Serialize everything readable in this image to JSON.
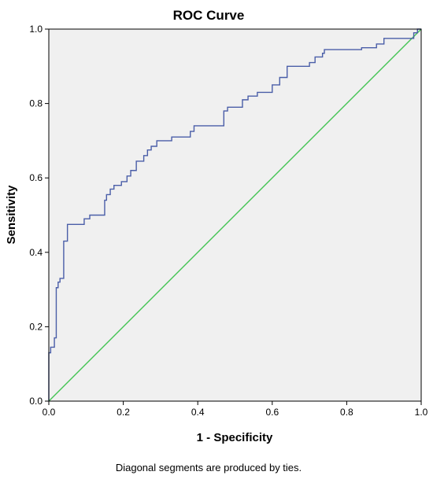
{
  "chart_data": {
    "type": "line",
    "title": "ROC Curve",
    "xlabel": "1 - Specificity",
    "ylabel": "Sensitivity",
    "xlim": [
      0,
      1
    ],
    "ylim": [
      0,
      1
    ],
    "x_ticks": [
      "0.0",
      "0.2",
      "0.4",
      "0.6",
      "0.8",
      "1.0"
    ],
    "y_ticks": [
      "0.0",
      "0.2",
      "0.4",
      "0.6",
      "0.8",
      "1.0"
    ],
    "grid": false,
    "footnote": "Diagonal segments are produced by ties.",
    "colors": {
      "plot_background": "#f0f0f0",
      "roc_line": "#4a5ea8",
      "reference_line": "#44c454",
      "frame": "#000000"
    },
    "series": [
      {
        "style": "step",
        "x": [
          0.0,
          0.0,
          0.005,
          0.005,
          0.015,
          0.015,
          0.02,
          0.02,
          0.025,
          0.025,
          0.03,
          0.03,
          0.04,
          0.04,
          0.05,
          0.05,
          0.095,
          0.095,
          0.11,
          0.11,
          0.15,
          0.15,
          0.155,
          0.155,
          0.165,
          0.165,
          0.175,
          0.175,
          0.195,
          0.195,
          0.21,
          0.21,
          0.22,
          0.22,
          0.235,
          0.235,
          0.255,
          0.255,
          0.265,
          0.265,
          0.275,
          0.275,
          0.29,
          0.29,
          0.33,
          0.33,
          0.38,
          0.38,
          0.39,
          0.39,
          0.47,
          0.47,
          0.48,
          0.48,
          0.52,
          0.52,
          0.535,
          0.535,
          0.56,
          0.56,
          0.6,
          0.6,
          0.62,
          0.62,
          0.64,
          0.64,
          0.7,
          0.7,
          0.715,
          0.715,
          0.735,
          0.735,
          0.74,
          0.74,
          0.84,
          0.84,
          0.88,
          0.88,
          0.9,
          0.9,
          0.98,
          0.98,
          0.99,
          0.99,
          1.0,
          1.0
        ],
        "y": [
          0.0,
          0.13,
          0.13,
          0.145,
          0.145,
          0.17,
          0.17,
          0.305,
          0.305,
          0.32,
          0.32,
          0.33,
          0.33,
          0.43,
          0.43,
          0.475,
          0.475,
          0.49,
          0.49,
          0.5,
          0.5,
          0.54,
          0.54,
          0.555,
          0.555,
          0.57,
          0.57,
          0.58,
          0.58,
          0.59,
          0.59,
          0.605,
          0.605,
          0.62,
          0.62,
          0.645,
          0.645,
          0.66,
          0.66,
          0.675,
          0.675,
          0.685,
          0.685,
          0.7,
          0.7,
          0.71,
          0.71,
          0.725,
          0.725,
          0.74,
          0.74,
          0.78,
          0.78,
          0.79,
          0.79,
          0.81,
          0.81,
          0.82,
          0.82,
          0.83,
          0.83,
          0.85,
          0.85,
          0.87,
          0.87,
          0.9,
          0.9,
          0.91,
          0.91,
          0.925,
          0.925,
          0.935,
          0.935,
          0.945,
          0.945,
          0.95,
          0.95,
          0.96,
          0.96,
          0.975,
          0.975,
          0.99,
          0.99,
          1.0,
          1.0,
          1.0
        ]
      },
      {
        "style": "reference",
        "x": [
          0,
          1
        ],
        "y": [
          0,
          1
        ]
      }
    ]
  }
}
